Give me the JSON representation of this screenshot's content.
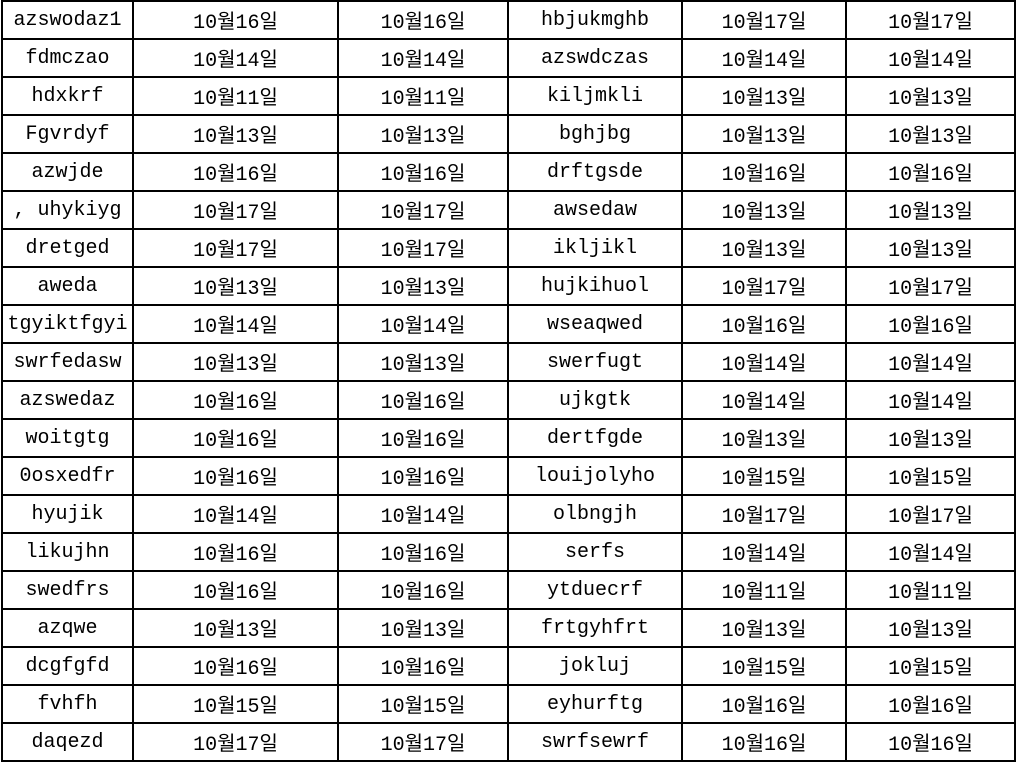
{
  "colors": {
    "background": "#ffffff",
    "grid_border": "#000000",
    "text": "#000000"
  },
  "table": {
    "description": "Two side-by-side name/date groups; columns: name, date, date, name, date, date",
    "rows": [
      [
        "azswodaz1",
        "10월16일",
        "10월16일",
        "hbjukmghb",
        "10월17일",
        "10월17일"
      ],
      [
        "fdmczao",
        "10월14일",
        "10월14일",
        "azswdczas",
        "10월14일",
        "10월14일"
      ],
      [
        "hdxkrf",
        "10월11일",
        "10월11일",
        "kiljmkli",
        "10월13일",
        "10월13일"
      ],
      [
        "Fgvrdyf",
        "10월13일",
        "10월13일",
        "bghjbg",
        "10월13일",
        "10월13일"
      ],
      [
        "azwjde",
        "10월16일",
        "10월16일",
        "drftgsde",
        "10월16일",
        "10월16일"
      ],
      [
        ", uhykiyg",
        "10월17일",
        "10월17일",
        "awsedaw",
        "10월13일",
        "10월13일"
      ],
      [
        "dretged",
        "10월17일",
        "10월17일",
        "ikljikl",
        "10월13일",
        "10월13일"
      ],
      [
        "aweda",
        "10월13일",
        "10월13일",
        "hujkihuol",
        "10월17일",
        "10월17일"
      ],
      [
        "tgyiktfgyi",
        "10월14일",
        "10월14일",
        "wseaqwed",
        "10월16일",
        "10월16일"
      ],
      [
        "swrfedasw",
        "10월13일",
        "10월13일",
        "swerfugt",
        "10월14일",
        "10월14일"
      ],
      [
        "azswedaz",
        "10월16일",
        "10월16일",
        "ujkgtk",
        "10월14일",
        "10월14일"
      ],
      [
        "woitgtg",
        "10월16일",
        "10월16일",
        "dertfgde",
        "10월13일",
        "10월13일"
      ],
      [
        "0osxedfr",
        "10월16일",
        "10월16일",
        "louijolyho",
        "10월15일",
        "10월15일"
      ],
      [
        "hyujik",
        "10월14일",
        "10월14일",
        "olbngjh",
        "10월17일",
        "10월17일"
      ],
      [
        "likujhn",
        "10월16일",
        "10월16일",
        "serfs",
        "10월14일",
        "10월14일"
      ],
      [
        "swedfrs",
        "10월16일",
        "10월16일",
        "ytduecrf",
        "10월11일",
        "10월11일"
      ],
      [
        "azqwe",
        "10월13일",
        "10월13일",
        "frtgyhfrt",
        "10월13일",
        "10월13일"
      ],
      [
        "dcgfgfd",
        "10월16일",
        "10월16일",
        "jokluj",
        "10월15일",
        "10월15일"
      ],
      [
        "fvhfh",
        "10월15일",
        "10월15일",
        "eyhurftg",
        "10월16일",
        "10월16일"
      ],
      [
        "daqezd",
        "10월17일",
        "10월17일",
        "swrfsewrf",
        "10월16일",
        "10월16일"
      ]
    ]
  }
}
